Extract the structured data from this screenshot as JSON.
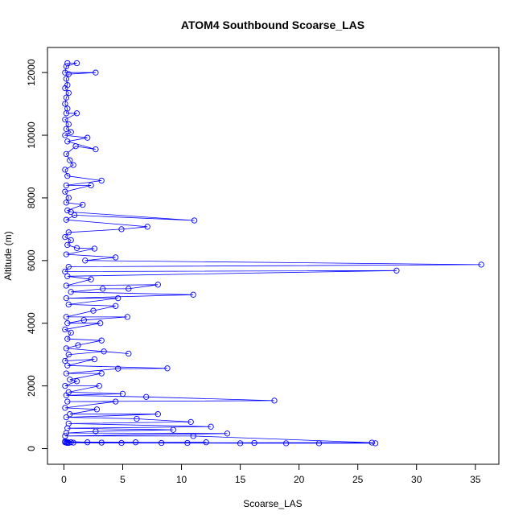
{
  "chart_data": {
    "type": "line",
    "title": "ATOM4 Southbound Scoarse_LAS",
    "xlabel": "Scoarse_LAS",
    "ylabel": "Altitude (m)",
    "xlim": [
      -1.4,
      37
    ],
    "ylim": [
      -500,
      12800
    ],
    "xticks": [
      0,
      5,
      10,
      15,
      20,
      25,
      30,
      35
    ],
    "yticks": [
      0,
      2000,
      4000,
      6000,
      8000,
      10000,
      12000
    ],
    "grid": false,
    "legend": "none",
    "series_color": "#0000ff",
    "marker": "open-circle",
    "series": [
      {
        "points": [
          [
            0.3,
            12300
          ],
          [
            1.1,
            12300
          ],
          [
            0.2,
            12200
          ],
          [
            0.1,
            12000
          ],
          [
            2.7,
            12000
          ],
          [
            0.4,
            11950
          ],
          [
            0.2,
            11800
          ],
          [
            0.3,
            11600
          ],
          [
            0.1,
            11500
          ],
          [
            0.4,
            11350
          ],
          [
            0.2,
            11200
          ],
          [
            0.1,
            11000
          ],
          [
            0.3,
            10850
          ],
          [
            0.2,
            10700
          ],
          [
            1.1,
            10700
          ],
          [
            0.1,
            10500
          ],
          [
            0.4,
            10350
          ],
          [
            0.2,
            10200
          ],
          [
            0.6,
            10100
          ],
          [
            0.1,
            10000
          ],
          [
            2.0,
            9920
          ],
          [
            0.3,
            9800
          ],
          [
            2.7,
            9550
          ],
          [
            1.0,
            9650
          ],
          [
            0.2,
            9400
          ],
          [
            0.5,
            9200
          ],
          [
            0.8,
            9050
          ],
          [
            0.1,
            8900
          ],
          [
            0.3,
            8700
          ],
          [
            3.2,
            8550
          ],
          [
            0.2,
            8400
          ],
          [
            2.3,
            8400
          ],
          [
            0.1,
            8200
          ],
          [
            0.4,
            8000
          ],
          [
            0.2,
            7850
          ],
          [
            1.6,
            7780
          ],
          [
            0.3,
            7600
          ],
          [
            0.6,
            7550
          ],
          [
            11.1,
            7280
          ],
          [
            0.9,
            7450
          ],
          [
            0.2,
            7300
          ],
          [
            7.1,
            7080
          ],
          [
            4.9,
            7000
          ],
          [
            0.4,
            6900
          ],
          [
            0.1,
            6750
          ],
          [
            0.6,
            6650
          ],
          [
            0.3,
            6500
          ],
          [
            1.1,
            6400
          ],
          [
            2.6,
            6380
          ],
          [
            0.2,
            6200
          ],
          [
            4.4,
            6100
          ],
          [
            1.8,
            6000
          ],
          [
            35.5,
            5870
          ],
          [
            0.4,
            5800
          ],
          [
            0.1,
            5650
          ],
          [
            28.3,
            5680
          ],
          [
            0.3,
            5500
          ],
          [
            2.3,
            5400
          ],
          [
            0.2,
            5200
          ],
          [
            8.0,
            5230
          ],
          [
            5.5,
            5100
          ],
          [
            3.3,
            5100
          ],
          [
            0.6,
            5000
          ],
          [
            11.0,
            4910
          ],
          [
            0.2,
            4800
          ],
          [
            4.6,
            4800
          ],
          [
            0.4,
            4600
          ],
          [
            4.4,
            4550
          ],
          [
            2.5,
            4400
          ],
          [
            0.2,
            4200
          ],
          [
            5.4,
            4200
          ],
          [
            1.7,
            4100
          ],
          [
            0.3,
            4000
          ],
          [
            3.1,
            4000
          ],
          [
            0.1,
            3800
          ],
          [
            0.6,
            3700
          ],
          [
            0.3,
            3500
          ],
          [
            3.2,
            3450
          ],
          [
            1.2,
            3300
          ],
          [
            0.2,
            3200
          ],
          [
            5.5,
            3030
          ],
          [
            3.4,
            3100
          ],
          [
            0.4,
            3000
          ],
          [
            0.1,
            2800
          ],
          [
            2.6,
            2850
          ],
          [
            0.3,
            2650
          ],
          [
            8.8,
            2560
          ],
          [
            4.6,
            2550
          ],
          [
            0.2,
            2400
          ],
          [
            3.2,
            2400
          ],
          [
            0.5,
            2200
          ],
          [
            1.1,
            2150
          ],
          [
            0.1,
            2000
          ],
          [
            3.0,
            2000
          ],
          [
            0.4,
            1800
          ],
          [
            5.0,
            1750
          ],
          [
            0.2,
            1700
          ],
          [
            7.0,
            1650
          ],
          [
            17.9,
            1530
          ],
          [
            0.3,
            1500
          ],
          [
            4.4,
            1500
          ],
          [
            0.1,
            1300
          ],
          [
            2.8,
            1250
          ],
          [
            0.5,
            1100
          ],
          [
            8.0,
            1100
          ],
          [
            0.2,
            1000
          ],
          [
            6.2,
            950
          ],
          [
            10.8,
            850
          ],
          [
            0.4,
            800
          ],
          [
            12.5,
            700
          ],
          [
            0.3,
            650
          ],
          [
            9.3,
            600
          ],
          [
            2.7,
            550
          ],
          [
            0.2,
            500
          ],
          [
            13.9,
            480
          ],
          [
            0.1,
            400
          ],
          [
            11.0,
            400
          ],
          [
            26.2,
            190
          ],
          [
            0.3,
            180
          ],
          [
            26.5,
            170
          ],
          [
            21.7,
            170
          ],
          [
            0.1,
            200
          ],
          [
            18.9,
            170
          ],
          [
            0.4,
            180
          ],
          [
            16.2,
            180
          ],
          [
            15.0,
            170
          ],
          [
            0.2,
            190
          ],
          [
            12.1,
            200
          ],
          [
            10.5,
            180
          ],
          [
            0.6,
            200
          ],
          [
            8.3,
            180
          ],
          [
            6.1,
            200
          ],
          [
            0.3,
            210
          ],
          [
            4.9,
            180
          ],
          [
            3.2,
            190
          ],
          [
            0.1,
            230
          ],
          [
            2.0,
            200
          ],
          [
            0.8,
            190
          ]
        ]
      }
    ]
  }
}
